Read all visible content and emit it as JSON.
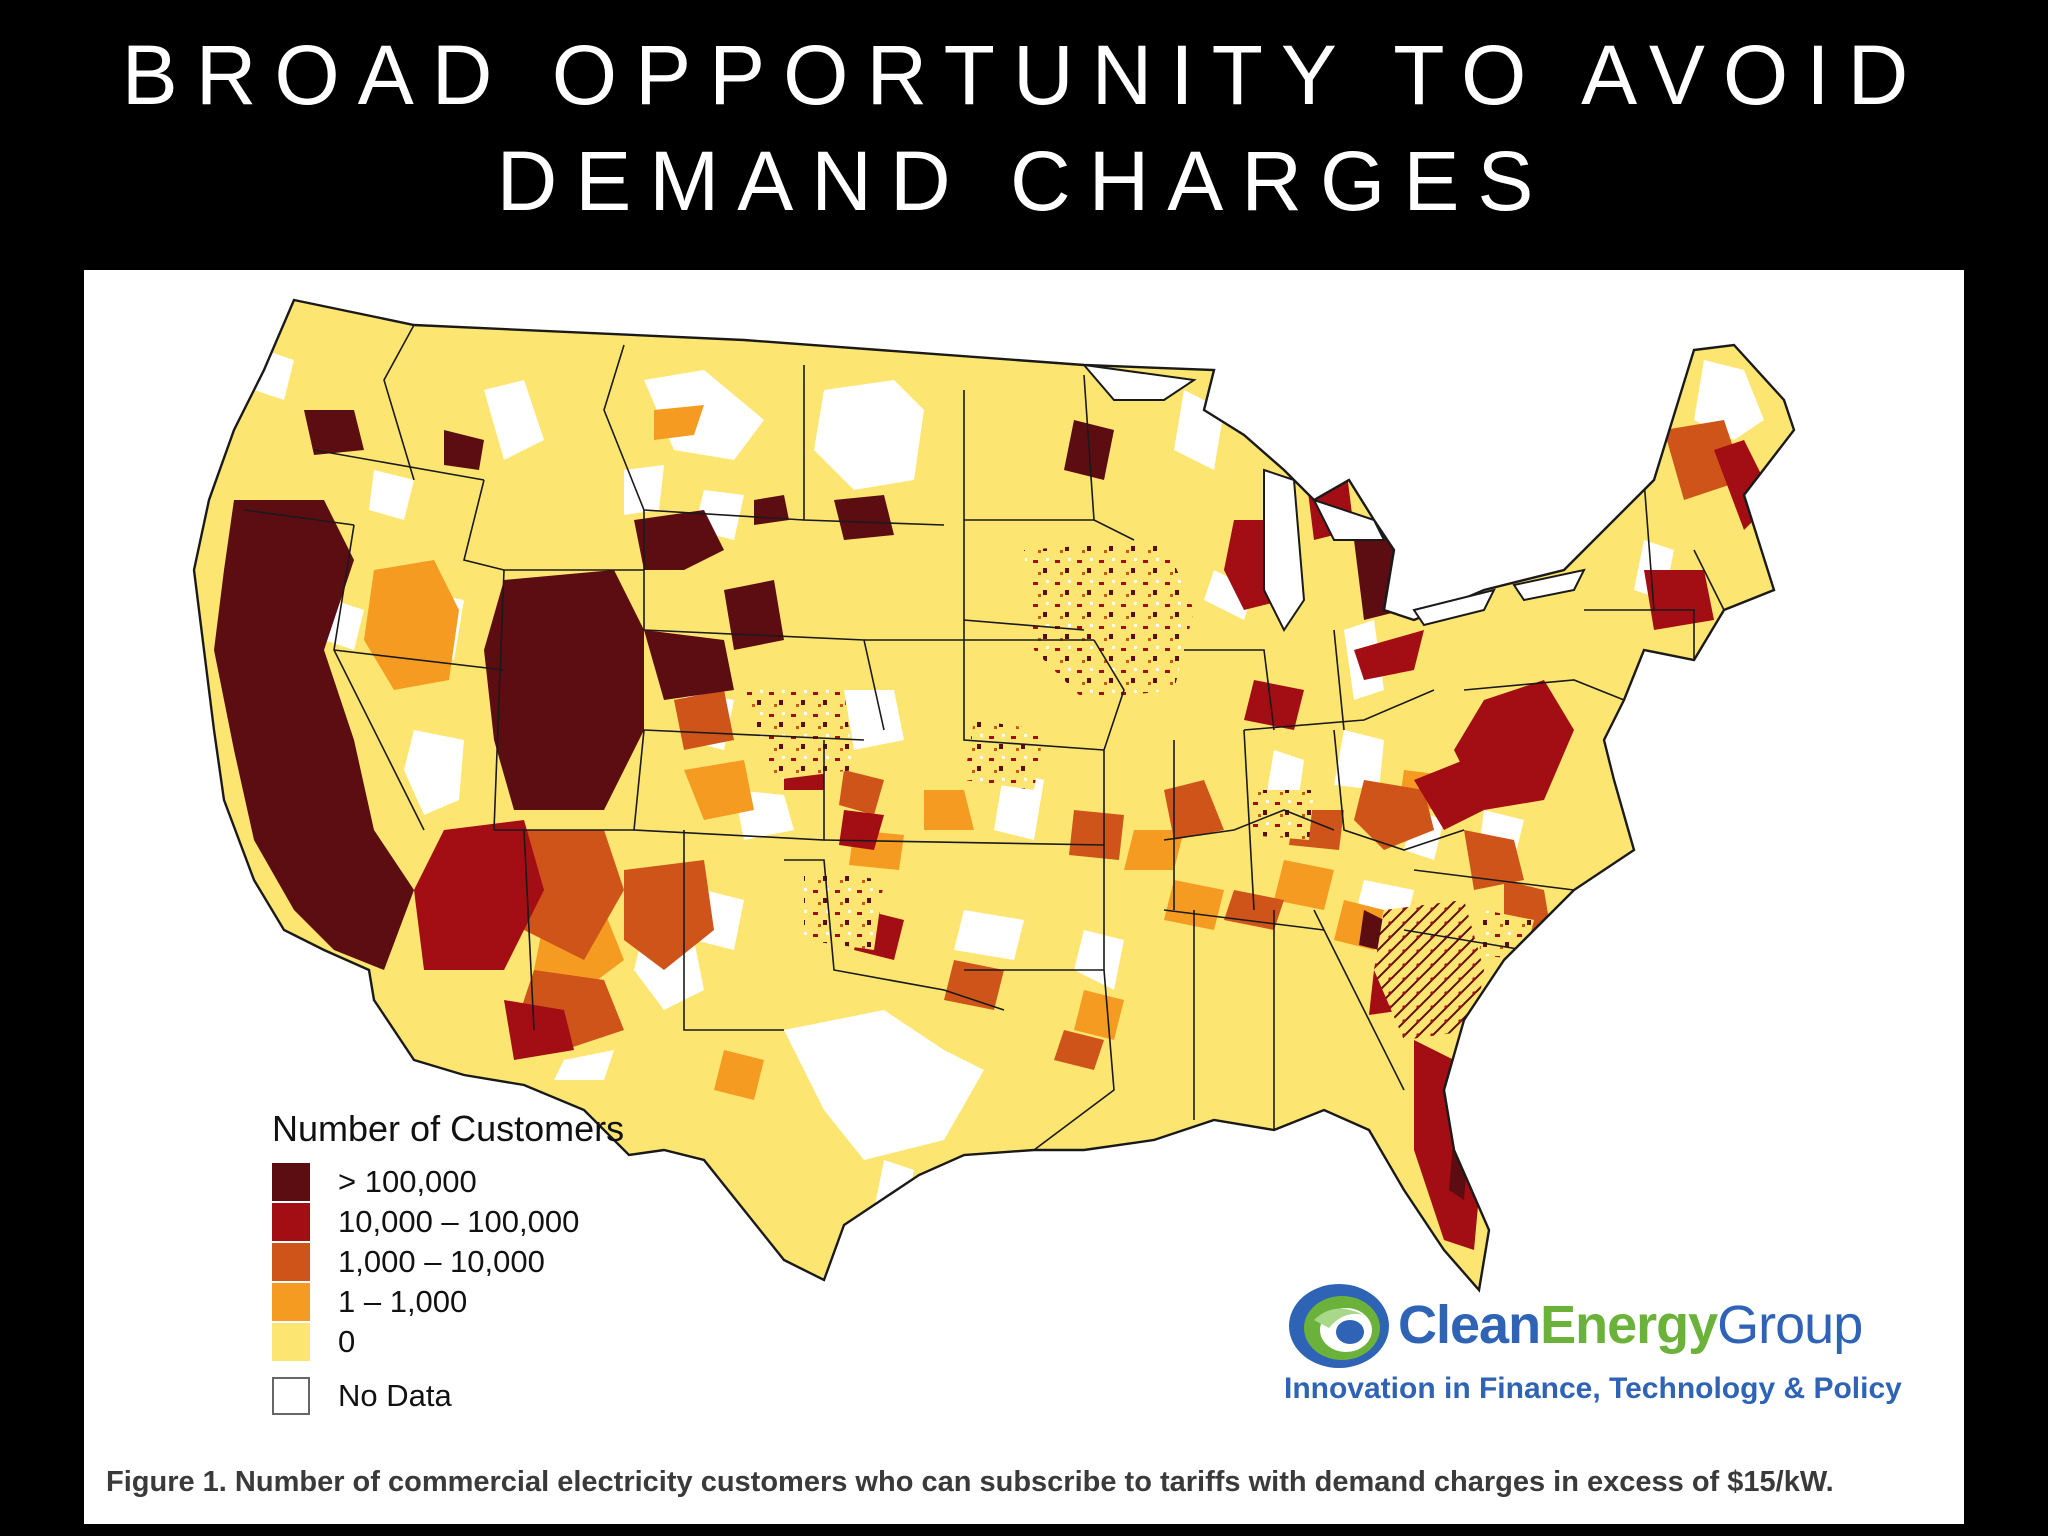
{
  "slide": {
    "title_line1": "BROAD OPPORTUNITY TO AVOID",
    "title_line2": "DEMAND CHARGES"
  },
  "figure": {
    "caption": "Figure 1. Number of commercial electricity customers who can subscribe to tariffs with demand charges in excess of $15/kW."
  },
  "legend": {
    "title": "Number of Customers",
    "items": [
      {
        "label": "> 100,000",
        "color": "#5c0d12"
      },
      {
        "label": "10,000 – 100,000",
        "color": "#a30d14"
      },
      {
        "label": "1,000 – 10,000",
        "color": "#cf541a"
      },
      {
        "label": "1 – 1,000",
        "color": "#f59b22"
      },
      {
        "label": "0",
        "color": "#fde571"
      },
      {
        "label": "No Data",
        "color": "#ffffff"
      }
    ]
  },
  "logo": {
    "word1": "Clean",
    "word2": "Energy",
    "word3": "Group",
    "tagline": "Innovation in Finance, Technology & Policy",
    "icon": "swirl-logo-icon"
  },
  "map": {
    "type": "choropleth",
    "region": "United States",
    "colors": {
      "gt_100000": "#5c0d12",
      "10000_100000": "#a30d14",
      "1000_10000": "#cf541a",
      "1_1000": "#f59b22",
      "zero": "#fde571",
      "no_data": "#ffffff",
      "border": "#1a1a1a"
    }
  }
}
